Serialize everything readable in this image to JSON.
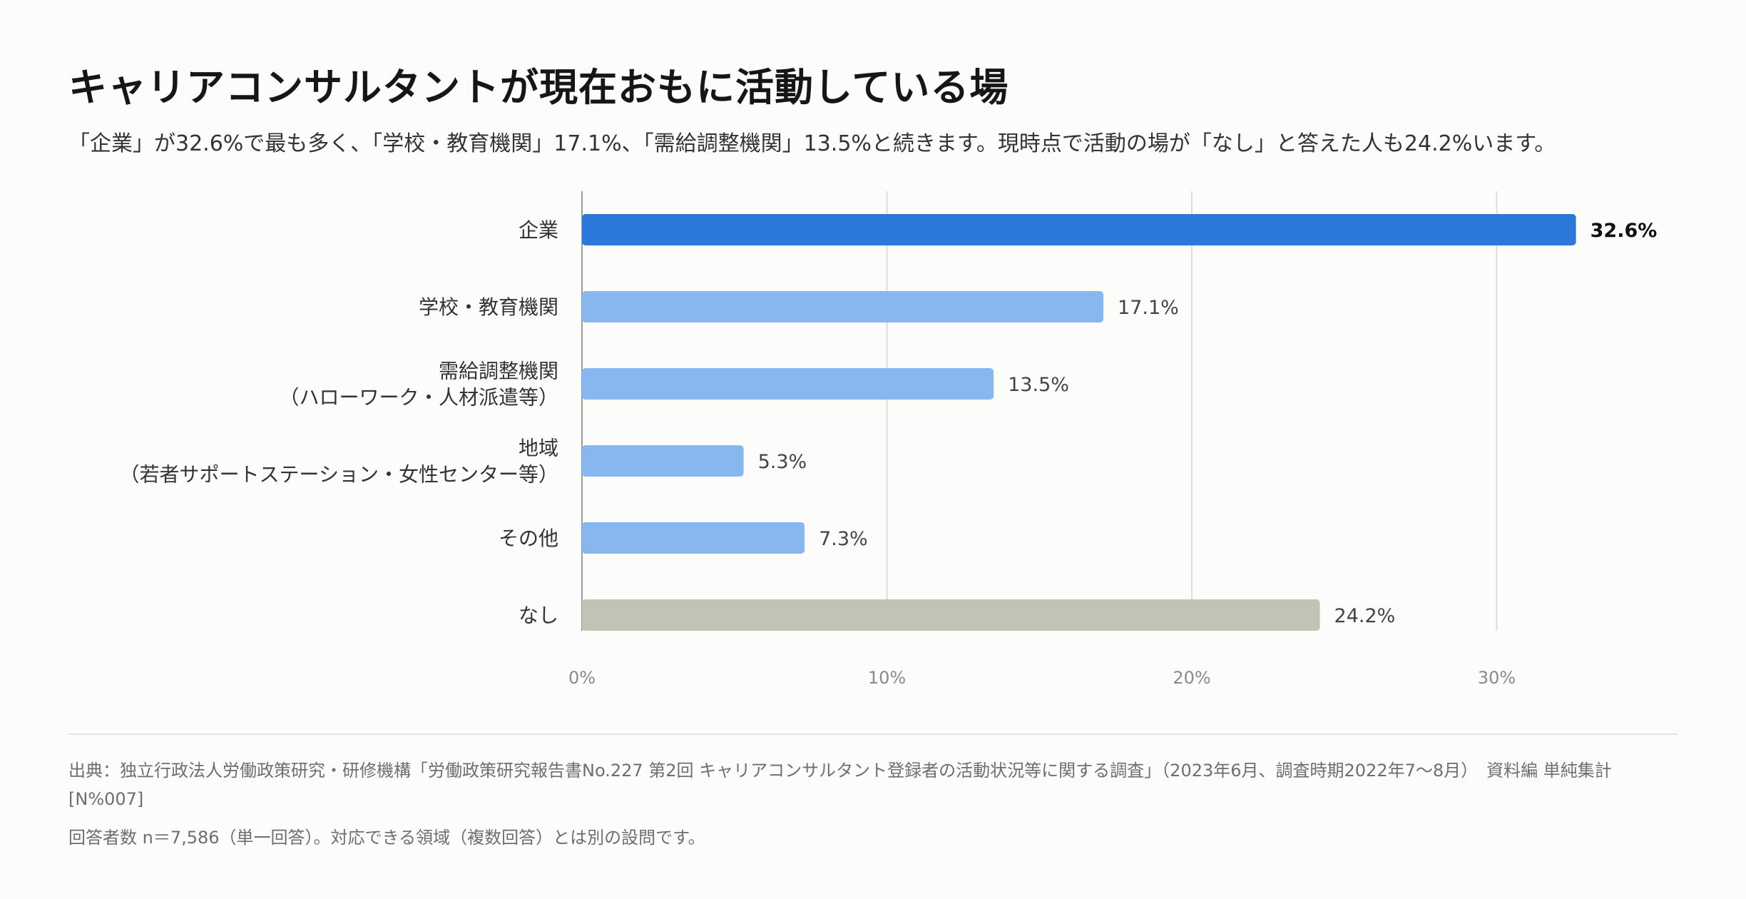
{
  "title": "キャリアコンサルタントが現在おもに活動している場",
  "subtitle": "「企業」が32.6%で最も多く、「学校・教育機関」17.1%、「需給調整機関」13.5%と続きます。現時点で活動の場が「なし」と答えた人も24.2%います。",
  "source": "出典：独立行政法人労働政策研究・研修機構「労働政策研究報告書No.227 第2回 キャリアコンサルタント登録者の活動状況等に関する調査」（2023年6月、調査時期2022年7〜8月）　資料編 単純集計 [N%007]",
  "note": "回答者数 n＝7,586（単一回答）。対応できる領域（複数回答）とは別の設問です。",
  "chart_data": {
    "type": "bar",
    "orientation": "horizontal",
    "categories": [
      [
        "企業"
      ],
      [
        "学校・教育機関"
      ],
      [
        "需給調整機関",
        "（ハローワーク・人材派遣等）"
      ],
      [
        "地域",
        "（若者サポートステーション・女性センター等）"
      ],
      [
        "その他"
      ],
      [
        "なし"
      ]
    ],
    "values": [
      32.6,
      17.1,
      13.5,
      5.3,
      7.3,
      24.2
    ],
    "value_labels": [
      "32.6%",
      "17.1%",
      "13.5%",
      "5.3%",
      "7.3%",
      "24.2%"
    ],
    "xlim": [
      0,
      35
    ],
    "xticks": [
      0,
      10,
      20,
      30
    ],
    "xtick_labels": [
      "0%",
      "10%",
      "20%",
      "30%"
    ],
    "grid": true,
    "highlight_index": 0,
    "colors": {
      "highlight": "#2b78d8",
      "default": "#88b6ef",
      "none": "#c3c3b5",
      "grid": "#dcdcdc",
      "axis": "#9a9a9a"
    }
  }
}
